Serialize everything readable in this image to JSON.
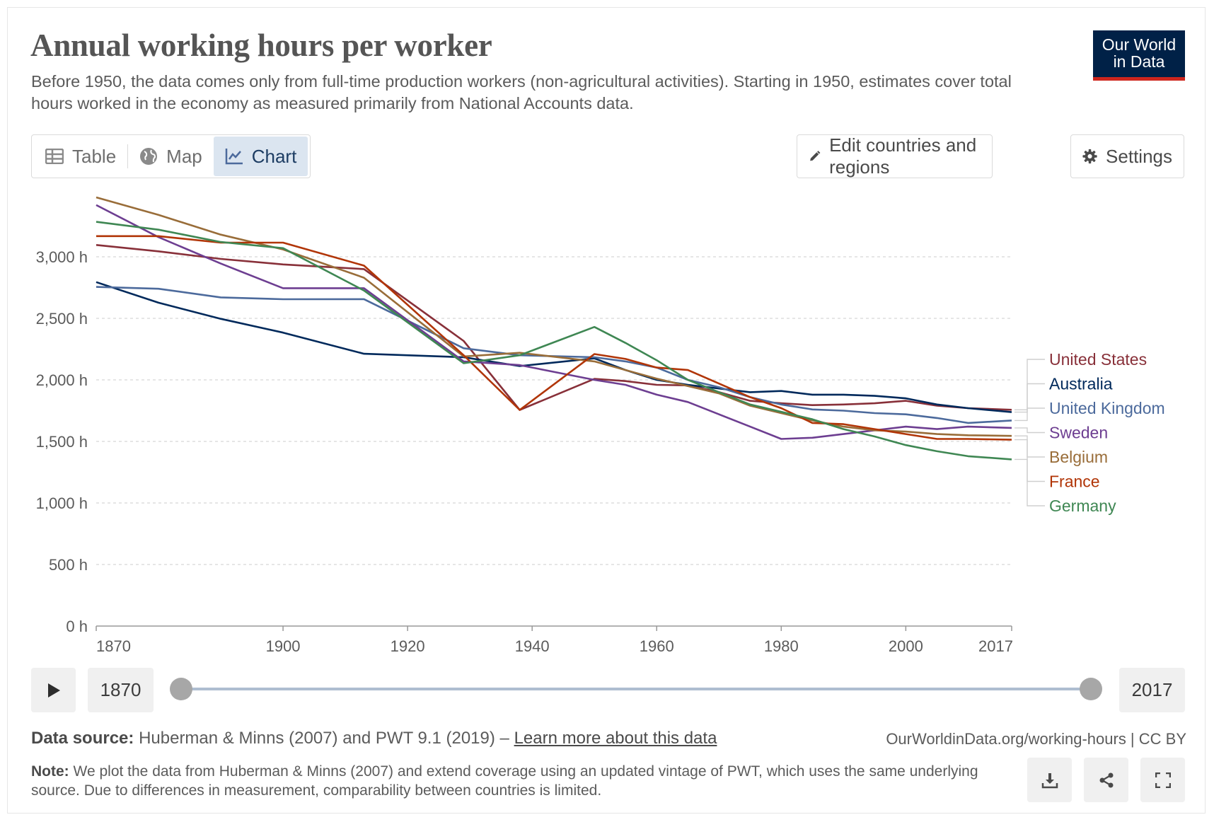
{
  "header": {
    "title": "Annual working hours per worker",
    "subtitle": "Before 1950, the data comes only from full-time production workers (non-agricultural activities). Starting in 1950, estimates cover total hours worked in the economy as measured primarily from National Accounts data.",
    "logo_line1": "Our World",
    "logo_line2": "in Data"
  },
  "tabs": [
    {
      "label": "Table",
      "icon": "table-icon"
    },
    {
      "label": "Map",
      "icon": "globe-icon"
    },
    {
      "label": "Chart",
      "icon": "line-chart-icon",
      "active": true
    }
  ],
  "toolbar": {
    "edit_label": "Edit countries and regions",
    "settings_label": "Settings"
  },
  "timeline": {
    "start_year": "1870",
    "end_year": "2017"
  },
  "footer": {
    "source_label": "Data source:",
    "source_text": "Huberman & Minns (2007) and PWT 9.1 (2019) –",
    "source_link": "Learn more about this data",
    "url_text": "OurWorldinData.org/working-hours | CC BY",
    "note_label": "Note:",
    "note_text": "We plot the data from Huberman & Minns (2007) and extend coverage using an updated vintage of PWT, which uses the same underlying source. Due to differences in measurement, comparability between countries is limited."
  },
  "chart_data": {
    "type": "line",
    "xlim": [
      1870,
      2017
    ],
    "ylim": [
      0,
      3500
    ],
    "x_ticks": [
      1870,
      1900,
      1920,
      1940,
      1960,
      1980,
      2000,
      2017
    ],
    "y_ticks": [
      0,
      500,
      1000,
      1500,
      2000,
      2500,
      3000
    ],
    "y_tick_labels": [
      "0 h",
      "500 h",
      "1,000 h",
      "1,500 h",
      "2,000 h",
      "2,500 h",
      "3,000 h"
    ],
    "grid": "horizontal dashed",
    "legend": "right, line labels",
    "series": [
      {
        "name": "United States",
        "color": "#883039",
        "points": [
          [
            1870,
            3096
          ],
          [
            1880,
            3044
          ],
          [
            1890,
            2983
          ],
          [
            1900,
            2938
          ],
          [
            1913,
            2900
          ],
          [
            1929,
            2316
          ],
          [
            1938,
            1756
          ],
          [
            1950,
            2008
          ],
          [
            1955,
            1990
          ],
          [
            1960,
            1960
          ],
          [
            1965,
            1955
          ],
          [
            1970,
            1900
          ],
          [
            1975,
            1830
          ],
          [
            1980,
            1810
          ],
          [
            1985,
            1795
          ],
          [
            1990,
            1800
          ],
          [
            1995,
            1810
          ],
          [
            2000,
            1830
          ],
          [
            2005,
            1790
          ],
          [
            2010,
            1770
          ],
          [
            2017,
            1757
          ]
        ]
      },
      {
        "name": "Australia",
        "color": "#00295b",
        "points": [
          [
            1870,
            2794
          ],
          [
            1880,
            2627
          ],
          [
            1890,
            2496
          ],
          [
            1900,
            2384
          ],
          [
            1913,
            2212
          ],
          [
            1929,
            2184
          ],
          [
            1938,
            2112
          ],
          [
            1950,
            2175
          ],
          [
            1955,
            2080
          ],
          [
            1960,
            2000
          ],
          [
            1965,
            1960
          ],
          [
            1970,
            1930
          ],
          [
            1975,
            1900
          ],
          [
            1980,
            1910
          ],
          [
            1985,
            1880
          ],
          [
            1990,
            1880
          ],
          [
            1995,
            1870
          ],
          [
            2000,
            1850
          ],
          [
            2005,
            1800
          ],
          [
            2010,
            1770
          ],
          [
            2017,
            1738
          ]
        ]
      },
      {
        "name": "United Kingdom",
        "color": "#4c6a9c",
        "points": [
          [
            1870,
            2755
          ],
          [
            1880,
            2740
          ],
          [
            1890,
            2670
          ],
          [
            1900,
            2655
          ],
          [
            1913,
            2656
          ],
          [
            1929,
            2257
          ],
          [
            1938,
            2200
          ],
          [
            1950,
            2184
          ],
          [
            1955,
            2150
          ],
          [
            1960,
            2100
          ],
          [
            1965,
            2000
          ],
          [
            1970,
            1940
          ],
          [
            1975,
            1860
          ],
          [
            1980,
            1800
          ],
          [
            1985,
            1760
          ],
          [
            1990,
            1750
          ],
          [
            1995,
            1730
          ],
          [
            2000,
            1720
          ],
          [
            2005,
            1690
          ],
          [
            2010,
            1650
          ],
          [
            2017,
            1670
          ]
        ]
      },
      {
        "name": "Sweden",
        "color": "#6d3e91",
        "points": [
          [
            1870,
            3420
          ],
          [
            1880,
            3160
          ],
          [
            1890,
            2945
          ],
          [
            1900,
            2745
          ],
          [
            1913,
            2745
          ],
          [
            1929,
            2150
          ],
          [
            1938,
            2120
          ],
          [
            1950,
            2000
          ],
          [
            1955,
            1960
          ],
          [
            1960,
            1880
          ],
          [
            1965,
            1820
          ],
          [
            1970,
            1720
          ],
          [
            1975,
            1620
          ],
          [
            1980,
            1520
          ],
          [
            1985,
            1530
          ],
          [
            1990,
            1560
          ],
          [
            1995,
            1590
          ],
          [
            2000,
            1620
          ],
          [
            2005,
            1600
          ],
          [
            2010,
            1620
          ],
          [
            2017,
            1610
          ]
        ]
      },
      {
        "name": "Belgium",
        "color": "#996d39",
        "points": [
          [
            1870,
            3483
          ],
          [
            1880,
            3340
          ],
          [
            1890,
            3180
          ],
          [
            1900,
            3060
          ],
          [
            1913,
            2830
          ],
          [
            1929,
            2190
          ],
          [
            1938,
            2220
          ],
          [
            1950,
            2150
          ],
          [
            1955,
            2080
          ],
          [
            1960,
            2010
          ],
          [
            1965,
            1950
          ],
          [
            1970,
            1890
          ],
          [
            1975,
            1790
          ],
          [
            1980,
            1730
          ],
          [
            1985,
            1670
          ],
          [
            1990,
            1620
          ],
          [
            1995,
            1590
          ],
          [
            2000,
            1580
          ],
          [
            2005,
            1560
          ],
          [
            2010,
            1550
          ],
          [
            2017,
            1545
          ]
        ]
      },
      {
        "name": "France",
        "color": "#b13507",
        "points": [
          [
            1870,
            3168
          ],
          [
            1880,
            3168
          ],
          [
            1890,
            3115
          ],
          [
            1900,
            3115
          ],
          [
            1913,
            2928
          ],
          [
            1929,
            2200
          ],
          [
            1938,
            1756
          ],
          [
            1950,
            2210
          ],
          [
            1955,
            2170
          ],
          [
            1960,
            2100
          ],
          [
            1965,
            2080
          ],
          [
            1970,
            1970
          ],
          [
            1975,
            1860
          ],
          [
            1980,
            1770
          ],
          [
            1985,
            1650
          ],
          [
            1990,
            1640
          ],
          [
            1995,
            1600
          ],
          [
            2000,
            1560
          ],
          [
            2005,
            1520
          ],
          [
            2010,
            1520
          ],
          [
            2017,
            1514
          ]
        ]
      },
      {
        "name": "Germany",
        "color": "#3f8753",
        "points": [
          [
            1870,
            3284
          ],
          [
            1880,
            3220
          ],
          [
            1890,
            3120
          ],
          [
            1900,
            3070
          ],
          [
            1913,
            2726
          ],
          [
            1929,
            2135
          ],
          [
            1938,
            2200
          ],
          [
            1950,
            2430
          ],
          [
            1955,
            2300
          ],
          [
            1960,
            2160
          ],
          [
            1965,
            2000
          ],
          [
            1970,
            1900
          ],
          [
            1975,
            1800
          ],
          [
            1980,
            1740
          ],
          [
            1985,
            1680
          ],
          [
            1990,
            1600
          ],
          [
            1995,
            1540
          ],
          [
            2000,
            1470
          ],
          [
            2005,
            1420
          ],
          [
            2010,
            1380
          ],
          [
            2017,
            1354
          ]
        ]
      }
    ],
    "legend_order": [
      "United States",
      "Australia",
      "United Kingdom",
      "Sweden",
      "Belgium",
      "France",
      "Germany"
    ]
  }
}
